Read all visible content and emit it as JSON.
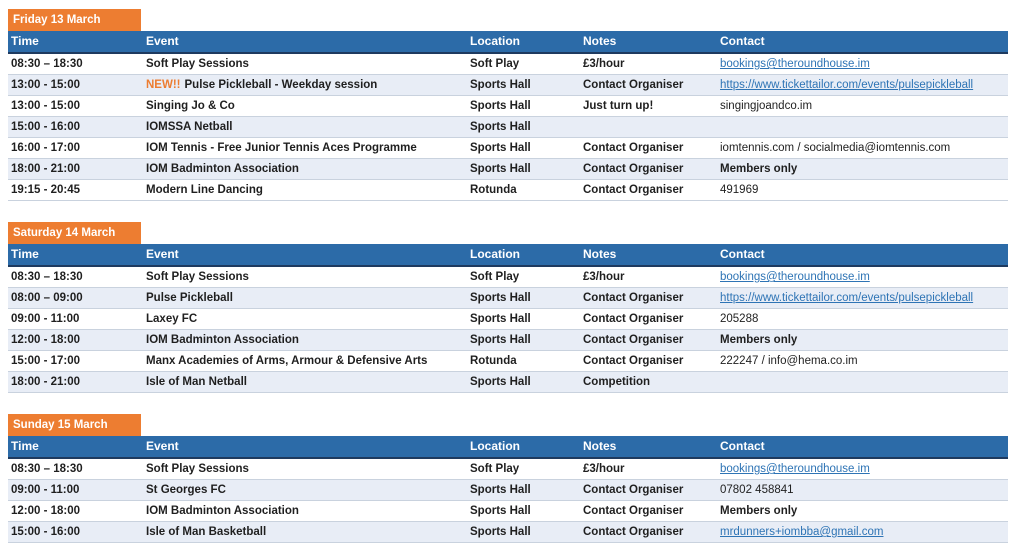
{
  "theme": {
    "tab_orange": "#ED7D31",
    "header_blue": "#2C6BA8",
    "header_border": "#1E3A5F",
    "band_blue": "#E8EDF6",
    "row_line": "#C9D2DE",
    "link_blue": "#2E74B5",
    "text_dark": "#1F1F1F",
    "new_badge_orange": "#ED7D31"
  },
  "columns": [
    "Time",
    "Event",
    "Location",
    "Notes",
    "Contact"
  ],
  "sections": [
    {
      "day_label": "Friday 13 March",
      "rows": [
        {
          "time": "08:30 – 18:30",
          "event_prefix": "",
          "event": "Soft Play Sessions",
          "location": "Soft Play",
          "notes": "£3/hour",
          "contact": "bookings@theroundhouse.im",
          "contact_style": "link"
        },
        {
          "time": "13:00 - 15:00",
          "event_prefix": "NEW!!",
          "event": "Pulse Pickleball - Weekday session",
          "location": "Sports Hall",
          "notes": "Contact Organiser",
          "contact": "https://www.tickettailor.com/events/pulsepickleball",
          "contact_style": "link"
        },
        {
          "time": "13:00 - 15:00",
          "event_prefix": "",
          "event": "Singing Jo & Co",
          "location": "Sports Hall",
          "notes": "Just turn up!",
          "contact": "singingjoandco.im",
          "contact_style": "text"
        },
        {
          "time": "15:00 - 16:00",
          "event_prefix": "",
          "event": "IOMSSA Netball",
          "location": "Sports Hall",
          "notes": "",
          "contact": "",
          "contact_style": "none"
        },
        {
          "time": "16:00 - 17:00",
          "event_prefix": "",
          "event": "IOM Tennis - Free Junior Tennis Aces Programme",
          "location": "Sports Hall",
          "notes": "Contact Organiser",
          "contact": "iomtennis.com / socialmedia@iomtennis.com",
          "contact_style": "text"
        },
        {
          "time": "18:00 - 21:00",
          "event_prefix": "",
          "event": "IOM Badminton Association",
          "location": "Sports Hall",
          "notes": "Contact Organiser",
          "contact": "Members only",
          "contact_style": "bold"
        },
        {
          "time": "19:15 - 20:45",
          "event_prefix": "",
          "event": "Modern Line Dancing",
          "location": "Rotunda",
          "notes": "Contact Organiser",
          "contact": "491969",
          "contact_style": "text"
        }
      ]
    },
    {
      "day_label": "Saturday 14 March",
      "rows": [
        {
          "time": "08:30 – 18:30",
          "event_prefix": "",
          "event": "Soft Play Sessions",
          "location": "Soft Play",
          "notes": "£3/hour",
          "contact": "bookings@theroundhouse.im",
          "contact_style": "link"
        },
        {
          "time": "08:00 – 09:00",
          "event_prefix": "",
          "event": "Pulse Pickleball",
          "location": "Sports Hall",
          "notes": "Contact Organiser",
          "contact": "https://www.tickettailor.com/events/pulsepickleball",
          "contact_style": "link"
        },
        {
          "time": "09:00 - 11:00",
          "event_prefix": "",
          "event": "Laxey FC",
          "location": "Sports Hall",
          "notes": "Contact Organiser",
          "contact": "205288",
          "contact_style": "text"
        },
        {
          "time": "12:00 - 18:00",
          "event_prefix": "",
          "event": "IOM Badminton Association",
          "location": "Sports Hall",
          "notes": "Contact Organiser",
          "contact": "Members only",
          "contact_style": "bold"
        },
        {
          "time": "15:00 - 17:00",
          "event_prefix": "",
          "event": "Manx Academies of Arms, Armour & Defensive Arts",
          "location": "Rotunda",
          "notes": "Contact Organiser",
          "contact": "222247 / info@hema.co.im",
          "contact_style": "text"
        },
        {
          "time": "18:00 - 21:00",
          "event_prefix": "",
          "event": "Isle of Man Netball",
          "location": "Sports Hall",
          "notes": "Competition",
          "contact": "",
          "contact_style": "none"
        }
      ]
    },
    {
      "day_label": "Sunday 15 March",
      "rows": [
        {
          "time": "08:30 – 18:30",
          "event_prefix": "",
          "event": "Soft Play Sessions",
          "location": "Soft Play",
          "notes": "£3/hour",
          "contact": "bookings@theroundhouse.im",
          "contact_style": "link"
        },
        {
          "time": "09:00 - 11:00",
          "event_prefix": "",
          "event": "St Georges FC",
          "location": "Sports Hall",
          "notes": "Contact Organiser",
          "contact": "07802 458841",
          "contact_style": "text"
        },
        {
          "time": "12:00 - 18:00",
          "event_prefix": "",
          "event": "IOM Badminton Association",
          "location": "Sports Hall",
          "notes": "Contact Organiser",
          "contact": "Members only",
          "contact_style": "bold"
        },
        {
          "time": "15:00 - 16:00",
          "event_prefix": "",
          "event": "Isle of Man Basketball",
          "location": "Sports Hall",
          "notes": "Contact Organiser",
          "contact": "mrdunners+iombba@gmail.com",
          "contact_style": "link"
        }
      ]
    }
  ]
}
